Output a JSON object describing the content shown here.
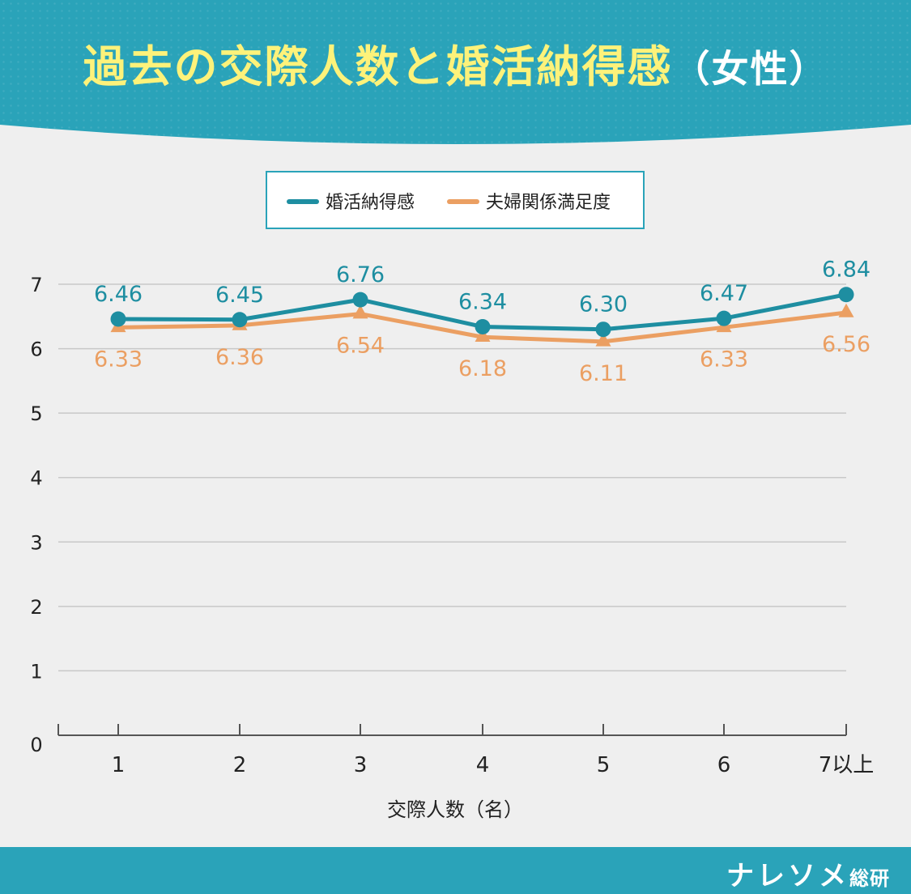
{
  "header": {
    "title_main": "過去の交際人数と婚活納得感",
    "title_sub": "（女性）"
  },
  "footer": {
    "brand_main": "ナレソメ",
    "brand_sub": "総研"
  },
  "colors": {
    "series_1": "#1e8ea1",
    "series_2": "#eb9f62",
    "grid": "#c8c8c8",
    "axis": "#555555"
  },
  "chart_data": {
    "type": "line",
    "categories": [
      "1",
      "2",
      "3",
      "4",
      "5",
      "6",
      "7以上"
    ],
    "series": [
      {
        "name": "婚活納得感",
        "values": [
          6.46,
          6.45,
          6.76,
          6.34,
          6.3,
          6.47,
          6.84
        ],
        "labels": [
          "6.46",
          "6.45",
          "6.76",
          "6.34",
          "6.30",
          "6.47",
          "6.84"
        ],
        "marker": "circle"
      },
      {
        "name": "夫婦関係満足度",
        "values": [
          6.33,
          6.36,
          6.54,
          6.18,
          6.11,
          6.33,
          6.56
        ],
        "labels": [
          "6.33",
          "6.36",
          "6.54",
          "6.18",
          "6.11",
          "6.33",
          "6.56"
        ],
        "marker": "triangle"
      }
    ],
    "xlabel": "交際人数（名）",
    "ylabel": "",
    "ylim": [
      0,
      7
    ],
    "yticks": [
      0,
      1,
      2,
      3,
      4,
      5,
      6,
      7
    ],
    "grid": true,
    "legend": "top-center"
  }
}
